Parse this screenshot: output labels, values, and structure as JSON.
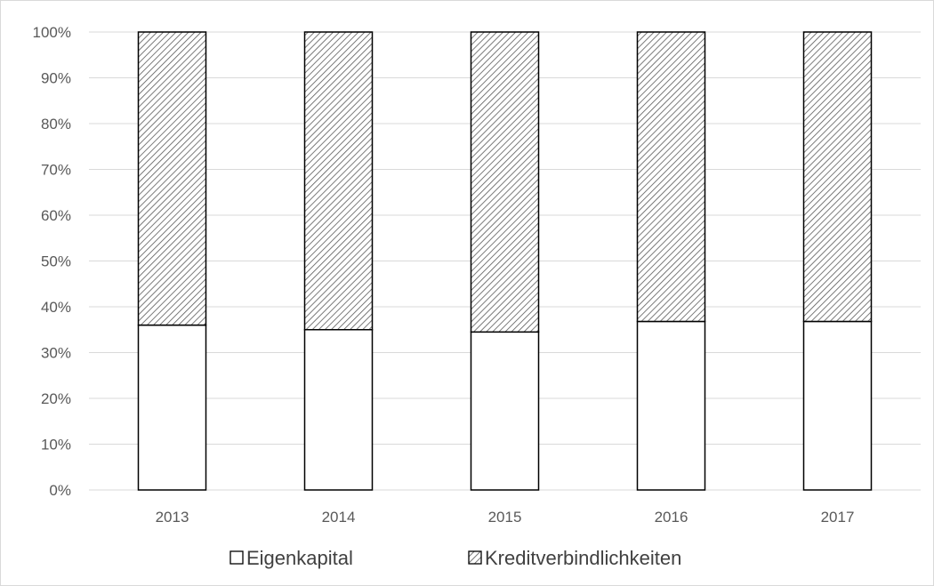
{
  "chart_data": {
    "type": "bar",
    "stacked": true,
    "percent": true,
    "categories": [
      "2013",
      "2014",
      "2015",
      "2016",
      "2017"
    ],
    "series": [
      {
        "name": "Eigenkapital",
        "values": [
          36,
          35,
          34.5,
          36.8,
          36.8
        ],
        "fill": "white"
      },
      {
        "name": "Kreditverbindlichkeiten",
        "values": [
          64,
          65,
          65.5,
          63.2,
          63.2
        ],
        "fill": "diagonal-hatch"
      }
    ],
    "y_ticks": [
      "0%",
      "10%",
      "20%",
      "30%",
      "40%",
      "50%",
      "60%",
      "70%",
      "80%",
      "90%",
      "100%"
    ],
    "ylim": [
      0,
      100
    ],
    "grid": true,
    "legend_position": "bottom",
    "title": "",
    "xlabel": "",
    "ylabel": "",
    "colors": {
      "grid": "#d9d9d9",
      "bar_stroke": "#000000",
      "hatch": "#595959",
      "text": "#595959"
    }
  }
}
